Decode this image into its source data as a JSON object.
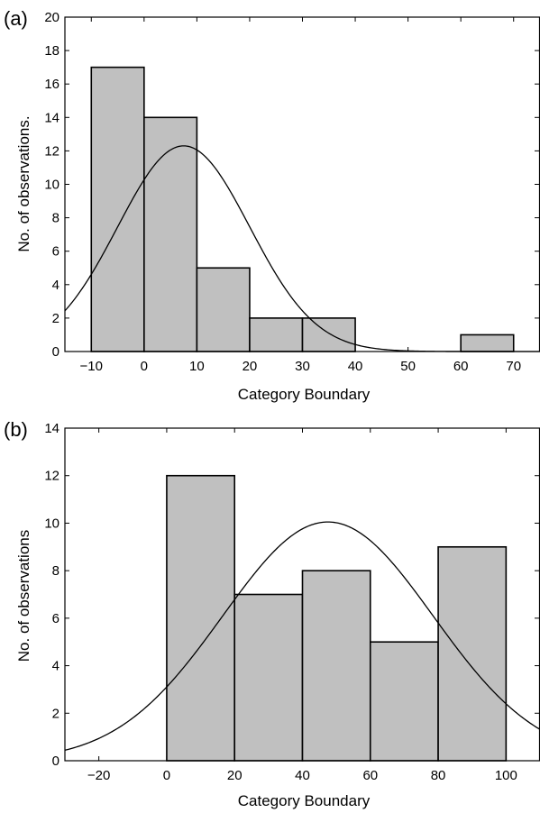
{
  "chart_data": [
    {
      "type": "bar",
      "panel_label": "(a)",
      "xlabel": "Category Boundary",
      "ylabel": "No. of observations.",
      "xlim": [
        -15,
        75
      ],
      "ylim": [
        0,
        20
      ],
      "xticks": [
        -10,
        0,
        10,
        20,
        30,
        40,
        50,
        60,
        70
      ],
      "yticks": [
        0,
        2,
        4,
        6,
        8,
        10,
        12,
        14,
        16,
        18,
        20
      ],
      "bins": [
        {
          "x0": -10,
          "x1": 0,
          "value": 17
        },
        {
          "x0": 0,
          "x1": 10,
          "value": 14
        },
        {
          "x0": 10,
          "x1": 20,
          "value": 5
        },
        {
          "x0": 20,
          "x1": 30,
          "value": 2
        },
        {
          "x0": 30,
          "x1": 40,
          "value": 2
        },
        {
          "x0": 60,
          "x1": 70,
          "value": 1
        }
      ],
      "curve": {
        "type": "normal",
        "mean": 7.5,
        "sd": 12.5,
        "peak": 12.3
      },
      "bar_color": "#c0c0c0",
      "grid": false
    },
    {
      "type": "bar",
      "panel_label": "(b)",
      "xlabel": "Category Boundary",
      "ylabel": "No. of observations",
      "xlim": [
        -30,
        110
      ],
      "ylim": [
        0,
        14
      ],
      "xticks": [
        -20,
        0,
        20,
        40,
        60,
        80,
        100
      ],
      "yticks": [
        0,
        2,
        4,
        6,
        8,
        10,
        12,
        14
      ],
      "bins": [
        {
          "x0": 0,
          "x1": 20,
          "value": 12
        },
        {
          "x0": 20,
          "x1": 40,
          "value": 7
        },
        {
          "x0": 40,
          "x1": 60,
          "value": 8
        },
        {
          "x0": 60,
          "x1": 80,
          "value": 5
        },
        {
          "x0": 80,
          "x1": 100,
          "value": 9
        }
      ],
      "curve": {
        "type": "normal",
        "mean": 47.5,
        "sd": 31,
        "peak": 10.05
      },
      "bar_color": "#c0c0c0",
      "grid": false
    }
  ]
}
